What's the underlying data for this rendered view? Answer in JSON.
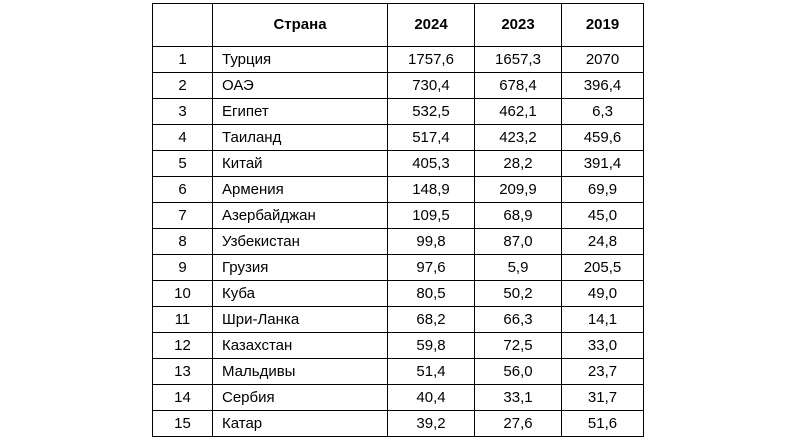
{
  "table": {
    "headers": {
      "num": "",
      "country": "Страна",
      "y2024": "2024",
      "y2023": "2023",
      "y2019": "2019"
    },
    "rows": [
      {
        "num": "1",
        "country": "Турция",
        "y2024": "1757,6",
        "y2023": "1657,3",
        "y2019": "2070"
      },
      {
        "num": "2",
        "country": "ОАЭ",
        "y2024": "730,4",
        "y2023": "678,4",
        "y2019": "396,4"
      },
      {
        "num": "3",
        "country": "Египет",
        "y2024": "532,5",
        "y2023": "462,1",
        "y2019": "6,3"
      },
      {
        "num": "4",
        "country": "Таиланд",
        "y2024": "517,4",
        "y2023": "423,2",
        "y2019": "459,6"
      },
      {
        "num": "5",
        "country": "Китай",
        "y2024": "405,3",
        "y2023": "28,2",
        "y2019": "391,4"
      },
      {
        "num": "6",
        "country": "Армения",
        "y2024": "148,9",
        "y2023": "209,9",
        "y2019": "69,9"
      },
      {
        "num": "7",
        "country": "Азербайджан",
        "y2024": "109,5",
        "y2023": "68,9",
        "y2019": "45,0"
      },
      {
        "num": "8",
        "country": "Узбекистан",
        "y2024": "99,8",
        "y2023": "87,0",
        "y2019": "24,8"
      },
      {
        "num": "9",
        "country": "Грузия",
        "y2024": "97,6",
        "y2023": "5,9",
        "y2019": "205,5"
      },
      {
        "num": "10",
        "country": "Куба",
        "y2024": "80,5",
        "y2023": "50,2",
        "y2019": "49,0"
      },
      {
        "num": "11",
        "country": "Шри-Ланка",
        "y2024": "68,2",
        "y2023": "66,3",
        "y2019": "14,1"
      },
      {
        "num": "12",
        "country": "Казахстан",
        "y2024": "59,8",
        "y2023": "72,5",
        "y2019": "33,0"
      },
      {
        "num": "13",
        "country": "Мальдивы",
        "y2024": "51,4",
        "y2023": "56,0",
        "y2019": "23,7"
      },
      {
        "num": "14",
        "country": "Сербия",
        "y2024": "40,4",
        "y2023": "33,1",
        "y2019": "31,7"
      },
      {
        "num": "15",
        "country": "Катар",
        "y2024": "39,2",
        "y2023": "27,6",
        "y2019": "51,6"
      }
    ]
  }
}
